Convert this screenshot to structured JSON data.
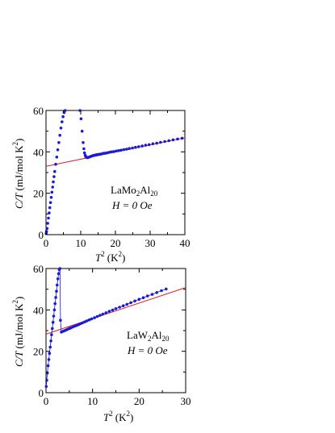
{
  "chart_data": [
    {
      "type": "scatter",
      "panel": "top",
      "xlabel_base": "T",
      "xlabel_sup": "2",
      "xlabel_unit": "(K",
      "xlabel_unit_sup": "2",
      "xlabel_close": ")",
      "ylabel_main": "C/T",
      "ylabel_unit": "(mJ/mol K",
      "ylabel_unit_sup": "2",
      "ylabel_close": ")",
      "xlim": [
        0,
        40
      ],
      "ylim": [
        0,
        60
      ],
      "xticks": [
        0,
        10,
        20,
        30,
        40
      ],
      "yticks": [
        0,
        20,
        40,
        60
      ],
      "xtick_labels": [
        "0",
        "10",
        "20",
        "30",
        "40"
      ],
      "ytick_labels": [
        "0",
        "20",
        "40",
        "60"
      ],
      "annotations": {
        "formula_parts": [
          "LaMo",
          "2",
          "Al",
          "20"
        ],
        "condition": "H = 0 Oe"
      },
      "series": [
        {
          "color": "#1a1adb",
          "marker": "circle",
          "x": [
            0.05,
            0.15,
            0.3,
            0.5,
            0.7,
            0.9,
            1.1,
            1.3,
            1.5,
            1.7,
            1.9,
            2.1,
            2.3,
            2.5,
            2.8,
            3.1,
            3.4,
            3.7,
            4.0,
            4.3,
            4.6,
            4.9,
            5.2,
            5.5,
            9.8,
            10.1,
            10.4,
            10.7,
            10.9,
            11.1,
            11.3,
            11.5,
            11.7,
            11.9,
            12.1,
            12.3,
            12.6,
            12.9,
            13.2,
            13.5,
            13.8,
            14.1,
            14.5,
            14.9,
            15.3,
            15.7,
            16.2,
            16.7,
            17.2,
            17.7,
            18.3,
            18.9,
            19.5,
            20.2,
            20.9,
            21.6,
            22.4,
            23.2,
            24.0,
            24.9,
            25.8,
            26.7,
            27.7,
            28.7,
            29.7,
            30.8,
            31.9,
            33.0,
            34.2,
            35.4,
            36.6,
            37.9,
            39.2
          ],
          "y": [
            0.5,
            1.5,
            3.0,
            5.5,
            8.0,
            10.5,
            13.0,
            15.5,
            18.0,
            20.5,
            23.0,
            25.5,
            28.0,
            30.5,
            34.0,
            37.5,
            41.0,
            44.5,
            48.0,
            51.5,
            54.5,
            57.0,
            59.0,
            60.0,
            60.0,
            56.0,
            50.0,
            44.5,
            41.5,
            39.5,
            38.3,
            37.6,
            37.3,
            37.2,
            37.3,
            37.4,
            37.6,
            37.8,
            38.0,
            38.2,
            38.3,
            38.4,
            38.6,
            38.7,
            38.8,
            38.9,
            39.1,
            39.3,
            39.4,
            39.6,
            39.8,
            40.0,
            40.1,
            40.4,
            40.6,
            40.8,
            41.1,
            41.3,
            41.6,
            41.9,
            42.2,
            42.5,
            42.8,
            43.2,
            43.5,
            43.9,
            44.2,
            44.6,
            45.0,
            45.4,
            45.8,
            46.2,
            46.6
          ]
        },
        {
          "color": "#e02020",
          "style": "fit-line",
          "x": [
            0,
            40
          ],
          "y": [
            33.0,
            46.8
          ]
        }
      ]
    },
    {
      "type": "scatter",
      "panel": "bottom",
      "xlabel_base": "T",
      "xlabel_sup": "2",
      "xlabel_unit": "(K",
      "xlabel_unit_sup": "2",
      "xlabel_close": ")",
      "ylabel_main": "C/T",
      "ylabel_unit": "(mJ/mol K",
      "ylabel_unit_sup": "2",
      "ylabel_close": ")",
      "xlim": [
        0,
        30
      ],
      "ylim": [
        0,
        60
      ],
      "xticks": [
        0,
        10,
        20,
        30
      ],
      "yticks": [
        0,
        20,
        40,
        60
      ],
      "xtick_labels": [
        "0",
        "10",
        "20",
        "30"
      ],
      "ytick_labels": [
        "0",
        "20",
        "40",
        "60"
      ],
      "annotations": {
        "formula_parts": [
          "LaW",
          "2",
          "Al",
          "20"
        ],
        "condition": "H = 0 Oe"
      },
      "series": [
        {
          "color": "#1a1adb",
          "marker": "circle",
          "x": [
            0.05,
            0.15,
            0.3,
            0.45,
            0.6,
            0.75,
            0.9,
            1.05,
            1.2,
            1.35,
            1.5,
            1.65,
            1.8,
            1.95,
            2.1,
            2.25,
            2.4,
            2.55,
            2.7,
            2.85,
            3.0,
            3.1,
            3.3,
            3.6,
            3.9,
            4.2,
            4.5,
            4.8,
            5.1,
            5.4,
            5.8,
            6.2,
            6.6,
            7.0,
            7.4,
            7.8,
            8.3,
            8.8,
            9.3,
            9.8,
            10.4,
            11.0,
            11.6,
            12.2,
            12.9,
            13.6,
            14.3,
            15.0,
            15.8,
            16.6,
            17.4,
            18.2,
            19.1,
            20.0,
            20.9,
            21.8,
            22.8,
            23.8,
            24.8,
            25.8
          ],
          "y": [
            3.0,
            6.0,
            9.5,
            13.0,
            16.0,
            19.0,
            22.0,
            25.0,
            28.0,
            31.0,
            34.0,
            37.0,
            40.0,
            43.0,
            46.0,
            49.0,
            52.0,
            55.0,
            57.5,
            59.5,
            60.0,
            35.0,
            29.3,
            29.6,
            29.9,
            30.2,
            30.5,
            30.8,
            31.1,
            31.4,
            31.8,
            32.2,
            32.5,
            32.9,
            33.3,
            33.7,
            34.2,
            34.7,
            35.2,
            35.7,
            36.2,
            36.8,
            37.4,
            38.0,
            38.6,
            39.3,
            39.9,
            40.6,
            41.3,
            42.0,
            42.7,
            43.5,
            44.3,
            45.1,
            45.9,
            46.7,
            47.5,
            48.4,
            49.3,
            50.1
          ],
          "connected": true
        },
        {
          "color": "#e02020",
          "style": "fit-line",
          "x": [
            0,
            30
          ],
          "y": [
            28.3,
            50.8
          ]
        }
      ]
    }
  ]
}
